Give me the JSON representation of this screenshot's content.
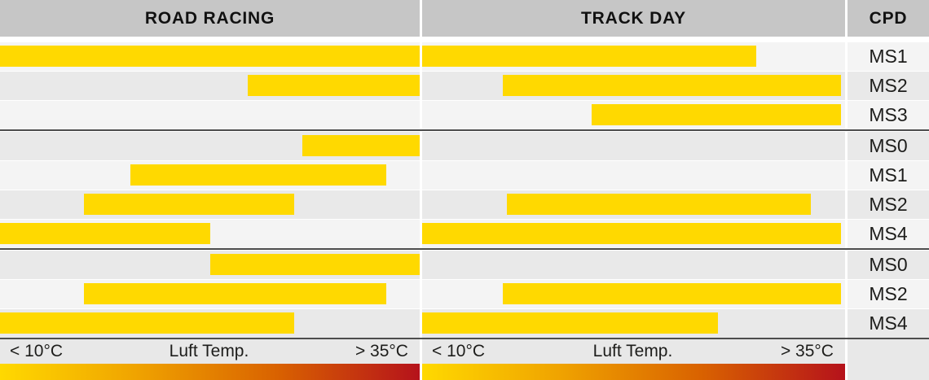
{
  "colors": {
    "bar": "#FFD900",
    "header_bg": "#C6C6C6",
    "row_light": "#F4F4F4",
    "row_dark": "#E9E9E9",
    "strip_bg": "#E8E8E8",
    "separator": "#4D4D4D",
    "gradient_end": "#B5121B"
  },
  "chart_data": {
    "type": "bar",
    "subtype": "horizontal-temperature-range-chart",
    "groups": [
      "ROAD RACING",
      "TRACK DAY"
    ],
    "cpd_label": "CPD",
    "x_axis": {
      "label": "Luft Temp.",
      "min_label": "< 10°C",
      "max_label": "> 35°C",
      "unit": "°C",
      "note": "bar values are percent of the air-temperature axis from <10°C (0) to >35°C (100)"
    },
    "rows": [
      {
        "cpd": "MS1",
        "group": 1,
        "road_racing": [
          0,
          100
        ],
        "track_day": [
          0,
          79
        ]
      },
      {
        "cpd": "MS2",
        "group": 1,
        "road_racing": [
          59,
          100
        ],
        "track_day": [
          19,
          99
        ]
      },
      {
        "cpd": "MS3",
        "group": 1,
        "road_racing": null,
        "track_day": [
          40,
          99
        ]
      },
      {
        "cpd": "MS0",
        "group": 2,
        "road_racing": [
          72,
          100
        ],
        "track_day": null
      },
      {
        "cpd": "MS1",
        "group": 2,
        "road_racing": [
          31,
          92
        ],
        "track_day": null
      },
      {
        "cpd": "MS2",
        "group": 2,
        "road_racing": [
          20,
          70
        ],
        "track_day": [
          20,
          92
        ]
      },
      {
        "cpd": "MS4",
        "group": 2,
        "road_racing": [
          0,
          50
        ],
        "track_day": [
          0,
          99
        ]
      },
      {
        "cpd": "MS0",
        "group": 3,
        "road_racing": [
          50,
          100
        ],
        "track_day": null
      },
      {
        "cpd": "MS2",
        "group": 3,
        "road_racing": [
          20,
          92
        ],
        "track_day": [
          19,
          99
        ]
      },
      {
        "cpd": "MS4",
        "group": 3,
        "road_racing": [
          0,
          70
        ],
        "track_day": [
          0,
          70
        ]
      }
    ]
  }
}
